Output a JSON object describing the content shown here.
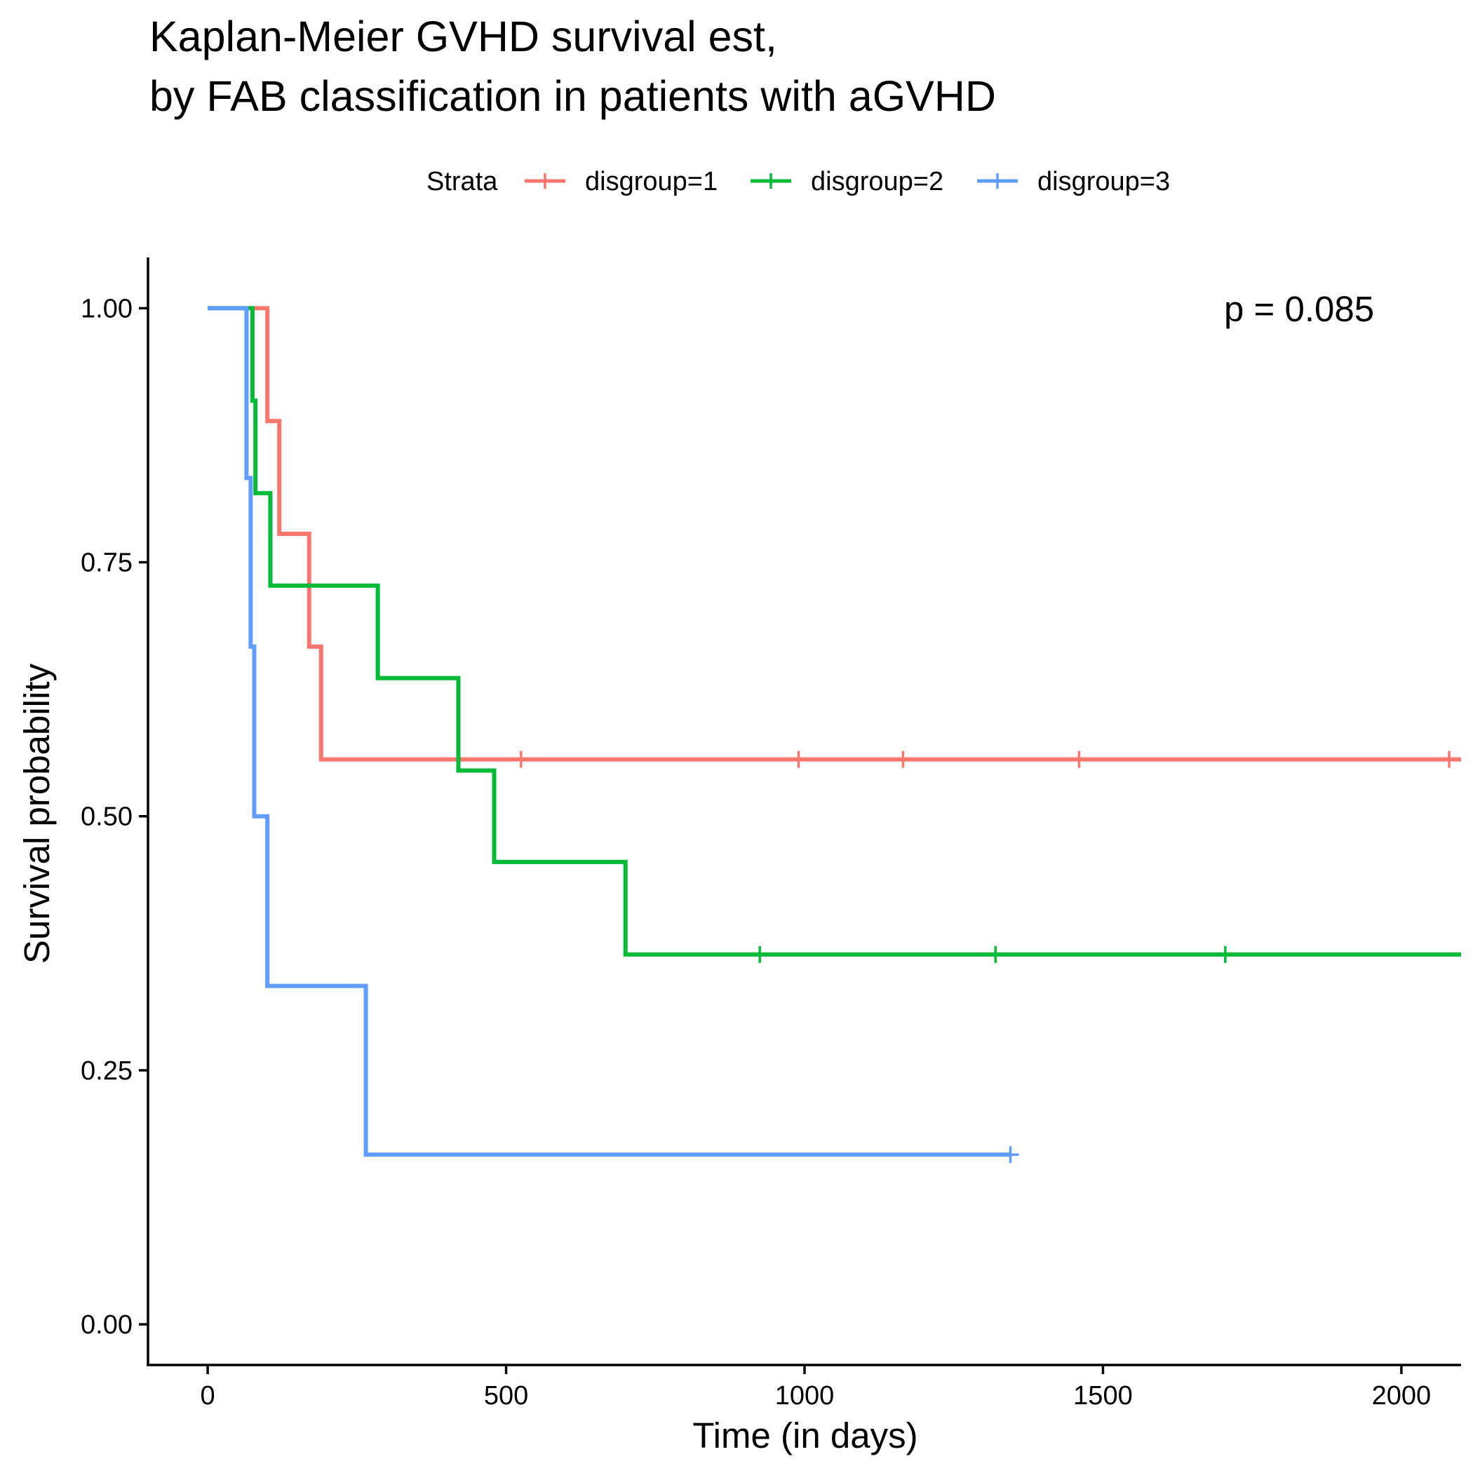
{
  "chart_data": {
    "type": "line",
    "subtype": "kaplan-meier step survival curve",
    "title": "Kaplan-Meier GVHD survival est,",
    "subtitle": "by FAB classification in patients with aGVHD",
    "xlabel": "Time (in days)",
    "ylabel": "Survival probability",
    "xlim": [
      -100,
      2100
    ],
    "ylim": [
      -0.04,
      1.05
    ],
    "x_ticks": [
      0,
      500,
      1000,
      1500,
      2000
    ],
    "x_tick_labels": [
      "0",
      "500",
      "1000",
      "1500",
      "2000"
    ],
    "y_ticks": [
      0,
      0.25,
      0.5,
      0.75,
      1
    ],
    "y_tick_labels": [
      "0.00",
      "0.25",
      "0.50",
      "0.75",
      "1.00"
    ],
    "grid": false,
    "legend_position": "top",
    "legend_title": "Strata",
    "annotation": "p = 0.085",
    "series": [
      {
        "name": "disgroup=1",
        "color": "#F8766D",
        "steps": [
          [
            0,
            1.0
          ],
          [
            100,
            0.889
          ],
          [
            120,
            0.778
          ],
          [
            170,
            0.667
          ],
          [
            190,
            0.556
          ],
          [
            2100,
            0.556
          ]
        ],
        "censored": [
          525,
          990,
          1165,
          1460,
          2080
        ]
      },
      {
        "name": "disgroup=2",
        "color": "#00BA38",
        "steps": [
          [
            0,
            1.0
          ],
          [
            75,
            0.909
          ],
          [
            80,
            0.818
          ],
          [
            105,
            0.727
          ],
          [
            285,
            0.636
          ],
          [
            420,
            0.545
          ],
          [
            480,
            0.455
          ],
          [
            700,
            0.364
          ],
          [
            2100,
            0.364
          ]
        ],
        "censored": [
          925,
          1320,
          1705
        ]
      },
      {
        "name": "disgroup=3",
        "color": "#619CFF",
        "steps": [
          [
            0,
            1.0
          ],
          [
            65,
            0.833
          ],
          [
            72,
            0.667
          ],
          [
            78,
            0.5
          ],
          [
            100,
            0.333
          ],
          [
            265,
            0.167
          ],
          [
            1345,
            0.167
          ]
        ],
        "censored": [
          1345
        ]
      }
    ]
  }
}
